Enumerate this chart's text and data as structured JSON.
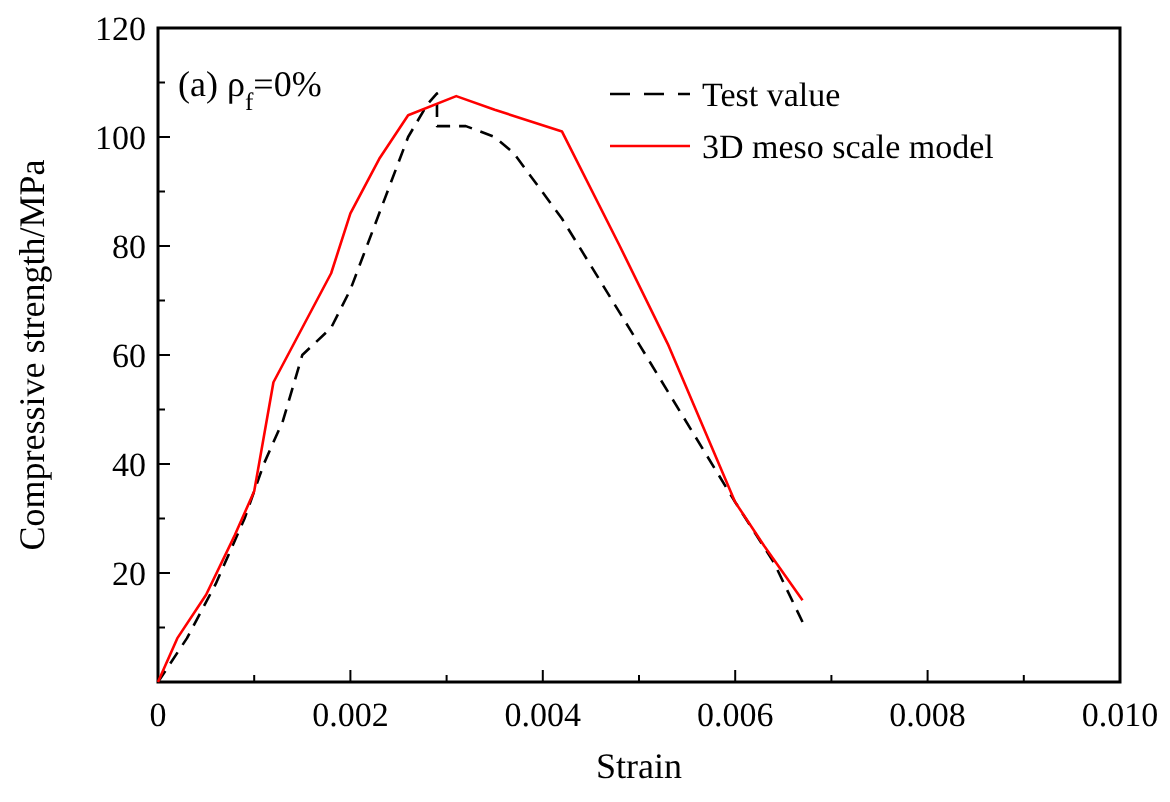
{
  "chart_data": {
    "type": "line",
    "xlabel": "Strain",
    "ylabel": "Compressive strength/MPa",
    "annotations": [
      "(a) ρ$_{f}$=0%"
    ],
    "legend": "top right",
    "grid": false,
    "marker": "none",
    "xlim": [
      0,
      0.01
    ],
    "ylim": [
      0,
      120
    ],
    "xticks": [
      0,
      {
        "value": 0.001,
        "label": null
      },
      0.002,
      {
        "value": 0.003,
        "label": null
      },
      0.004,
      {
        "value": 0.005,
        "label": null
      },
      0.006,
      {
        "value": 0.007,
        "label": null
      },
      0.008,
      {
        "value": 0.009,
        "label": null
      },
      {
        "value": 0.01,
        "label": "0.010"
      }
    ],
    "yticks": [
      {
        "value": 0,
        "label": null
      },
      {
        "value": 10,
        "label": null
      },
      20,
      {
        "value": 30,
        "label": null
      },
      40,
      {
        "value": 50,
        "label": null
      },
      60,
      {
        "value": 70,
        "label": null
      },
      80,
      {
        "value": 90,
        "label": null
      },
      100,
      {
        "value": 110,
        "label": null
      },
      120
    ],
    "series": [
      {
        "name": "Test value",
        "color": "#000000",
        "line_style": "dashed",
        "x": [
          0,
          0.0003,
          0.0006,
          0.0009,
          0.0011,
          0.0013,
          0.0015,
          0.0018,
          0.002,
          0.0023,
          0.0026,
          0.0028,
          0.0029,
          0.0029,
          0.0032,
          0.0035,
          0.0037,
          0.0042,
          0.005,
          0.006,
          0.0064,
          0.0067
        ],
        "values": [
          0,
          8,
          18,
          30,
          40,
          48,
          60,
          65,
          72,
          86,
          100,
          106,
          108,
          102,
          102,
          100,
          97,
          85,
          62,
          33,
          22,
          11
        ]
      },
      {
        "name": "3D meso scale model",
        "color": "#ff0000",
        "line_style": "solid",
        "x": [
          0,
          0.0002,
          0.0005,
          0.0008,
          0.001,
          0.0012,
          0.0015,
          0.0018,
          0.002,
          0.0023,
          0.0026,
          0.0031,
          0.0035,
          0.0042,
          0.0048,
          0.0053,
          0.006,
          0.0063,
          0.0067
        ],
        "values": [
          0,
          8,
          16,
          27,
          35,
          55,
          65,
          75,
          86,
          96,
          104,
          107.5,
          105,
          101,
          80,
          62,
          33,
          25,
          15
        ]
      }
    ]
  }
}
